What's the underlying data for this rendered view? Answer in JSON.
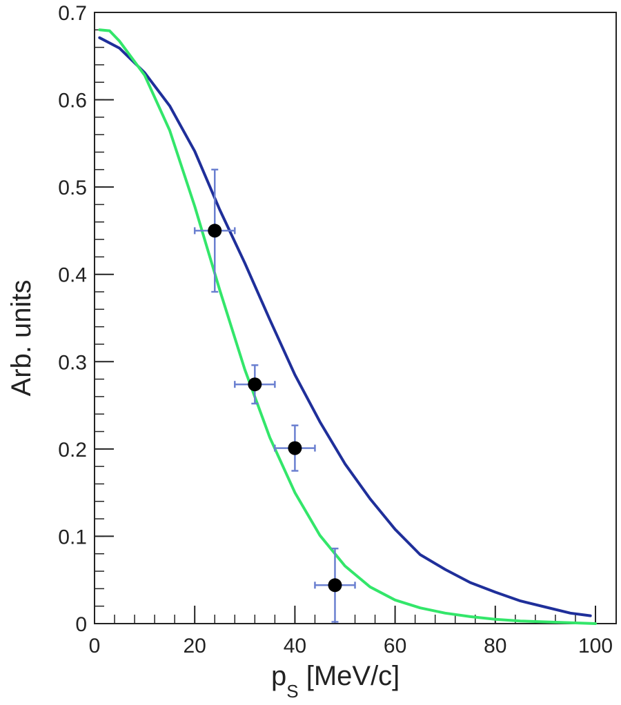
{
  "chart_data": {
    "type": "scatter",
    "title": "",
    "xlabel": "p",
    "xlabel_subscript": "S",
    "xlabel_unit": " [MeV/c]",
    "ylabel": "Arb. units",
    "xlim": [
      0,
      100
    ],
    "ylim": [
      0,
      0.7
    ],
    "x_ticks": [
      0,
      20,
      40,
      60,
      80,
      100
    ],
    "x_tick_labels": [
      "0",
      "20",
      "40",
      "60",
      "80",
      "100"
    ],
    "y_ticks": [
      0,
      0.1,
      0.2,
      0.3,
      0.4,
      0.5,
      0.6,
      0.7
    ],
    "y_tick_labels": [
      "0",
      "0.1",
      "0.2",
      "0.3",
      "0.4",
      "0.5",
      "0.6",
      "0.7"
    ],
    "grid": false,
    "legend": "none",
    "points": {
      "color": "#000000",
      "errorbar_color": "#6a7fd0",
      "x": [
        24,
        32,
        40,
        48
      ],
      "y": [
        0.45,
        0.274,
        0.201,
        0.044
      ],
      "x_err": [
        4,
        4,
        4,
        4
      ],
      "y_err": [
        0.07,
        0.022,
        0.026,
        0.042
      ]
    },
    "series": [
      {
        "type": "line",
        "color": "#1f2f9a",
        "x": [
          1,
          5,
          10,
          15,
          20,
          25,
          30,
          35,
          40,
          45,
          50,
          55,
          60,
          65,
          70,
          75,
          80,
          85,
          90,
          95,
          99
        ],
        "y": [
          0.671,
          0.659,
          0.631,
          0.593,
          0.541,
          0.474,
          0.413,
          0.348,
          0.285,
          0.231,
          0.183,
          0.143,
          0.108,
          0.079,
          0.062,
          0.047,
          0.036,
          0.026,
          0.019,
          0.012,
          0.009
        ]
      },
      {
        "type": "line",
        "color": "#33e66a",
        "x": [
          1,
          3,
          5,
          10,
          15,
          20,
          25,
          30,
          35,
          40,
          45,
          50,
          55,
          60,
          65,
          70,
          75,
          80,
          85,
          90,
          95,
          100
        ],
        "y": [
          0.68,
          0.679,
          0.667,
          0.628,
          0.565,
          0.478,
          0.382,
          0.291,
          0.213,
          0.15,
          0.101,
          0.066,
          0.042,
          0.027,
          0.018,
          0.012,
          0.008,
          0.005,
          0.003,
          0.002,
          0.001,
          0.0
        ]
      }
    ]
  }
}
